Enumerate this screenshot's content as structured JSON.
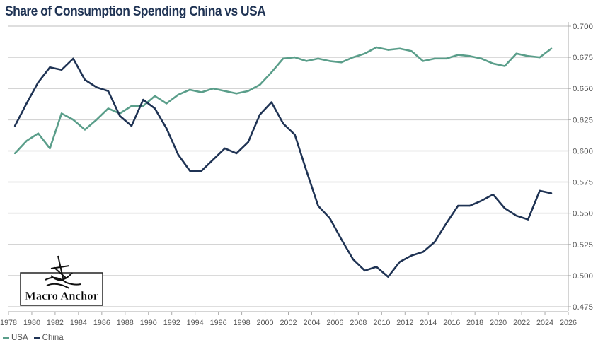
{
  "chart_data": {
    "type": "line",
    "title": "Share of Consumption Spending China vs USA",
    "xlabel": "",
    "ylabel": "",
    "x": [
      1978,
      1979,
      1980,
      1981,
      1982,
      1983,
      1984,
      1985,
      1986,
      1987,
      1988,
      1989,
      1990,
      1991,
      1992,
      1993,
      1994,
      1995,
      1996,
      1997,
      1998,
      1999,
      2000,
      2001,
      2002,
      2003,
      2004,
      2005,
      2006,
      2007,
      2008,
      2009,
      2010,
      2011,
      2012,
      2013,
      2014,
      2015,
      2016,
      2017,
      2018,
      2019,
      2020,
      2021,
      2022,
      2023,
      2024
    ],
    "series": [
      {
        "name": "USA",
        "color": "#5a9e8a",
        "values": [
          0.598,
          0.608,
          0.614,
          0.602,
          0.63,
          0.625,
          0.617,
          0.625,
          0.634,
          0.63,
          0.636,
          0.636,
          0.644,
          0.638,
          0.645,
          0.649,
          0.647,
          0.65,
          0.648,
          0.646,
          0.648,
          0.653,
          0.663,
          0.674,
          0.675,
          0.672,
          0.674,
          0.672,
          0.671,
          0.675,
          0.678,
          0.683,
          0.681,
          0.682,
          0.68,
          0.672,
          0.674,
          0.674,
          0.677,
          0.676,
          0.674,
          0.67,
          0.668,
          0.678,
          0.676,
          0.675,
          0.682
        ]
      },
      {
        "name": "China",
        "color": "#1f3354",
        "values": [
          0.62,
          0.638,
          0.655,
          0.667,
          0.665,
          0.674,
          0.657,
          0.651,
          0.648,
          0.628,
          0.62,
          0.641,
          0.634,
          0.618,
          0.597,
          0.584,
          0.584,
          0.593,
          0.602,
          0.598,
          0.607,
          0.629,
          0.639,
          0.622,
          0.613,
          0.584,
          0.556,
          0.546,
          0.529,
          0.513,
          0.504,
          0.507,
          0.499,
          0.511,
          0.516,
          0.519,
          0.527,
          0.542,
          0.556,
          0.556,
          0.56,
          0.565,
          0.554,
          0.548,
          0.545,
          0.568,
          0.566
        ]
      }
    ],
    "xlim": [
      1978,
      2026
    ],
    "ylim": [
      0.475,
      0.7
    ],
    "x_ticks": [
      "1978",
      "1980",
      "1982",
      "1984",
      "1986",
      "1988",
      "1990",
      "1992",
      "1994",
      "1996",
      "1998",
      "2000",
      "2002",
      "2004",
      "2006",
      "2008",
      "2010",
      "2012",
      "2014",
      "2016",
      "2018",
      "2020",
      "2022",
      "2024",
      "2026"
    ],
    "y_ticks": [
      "0.475",
      "0.500",
      "0.525",
      "0.550",
      "0.575",
      "0.600",
      "0.625",
      "0.650",
      "0.675",
      "0.700"
    ],
    "y_axis_side": "right",
    "grid": true,
    "legend_placement": "bottom-left"
  },
  "legend": [
    {
      "label": "USA",
      "color": "#5a9e8a"
    },
    {
      "label": "China",
      "color": "#1f3354"
    }
  ],
  "logo": {
    "text": "Macro Anchor"
  }
}
